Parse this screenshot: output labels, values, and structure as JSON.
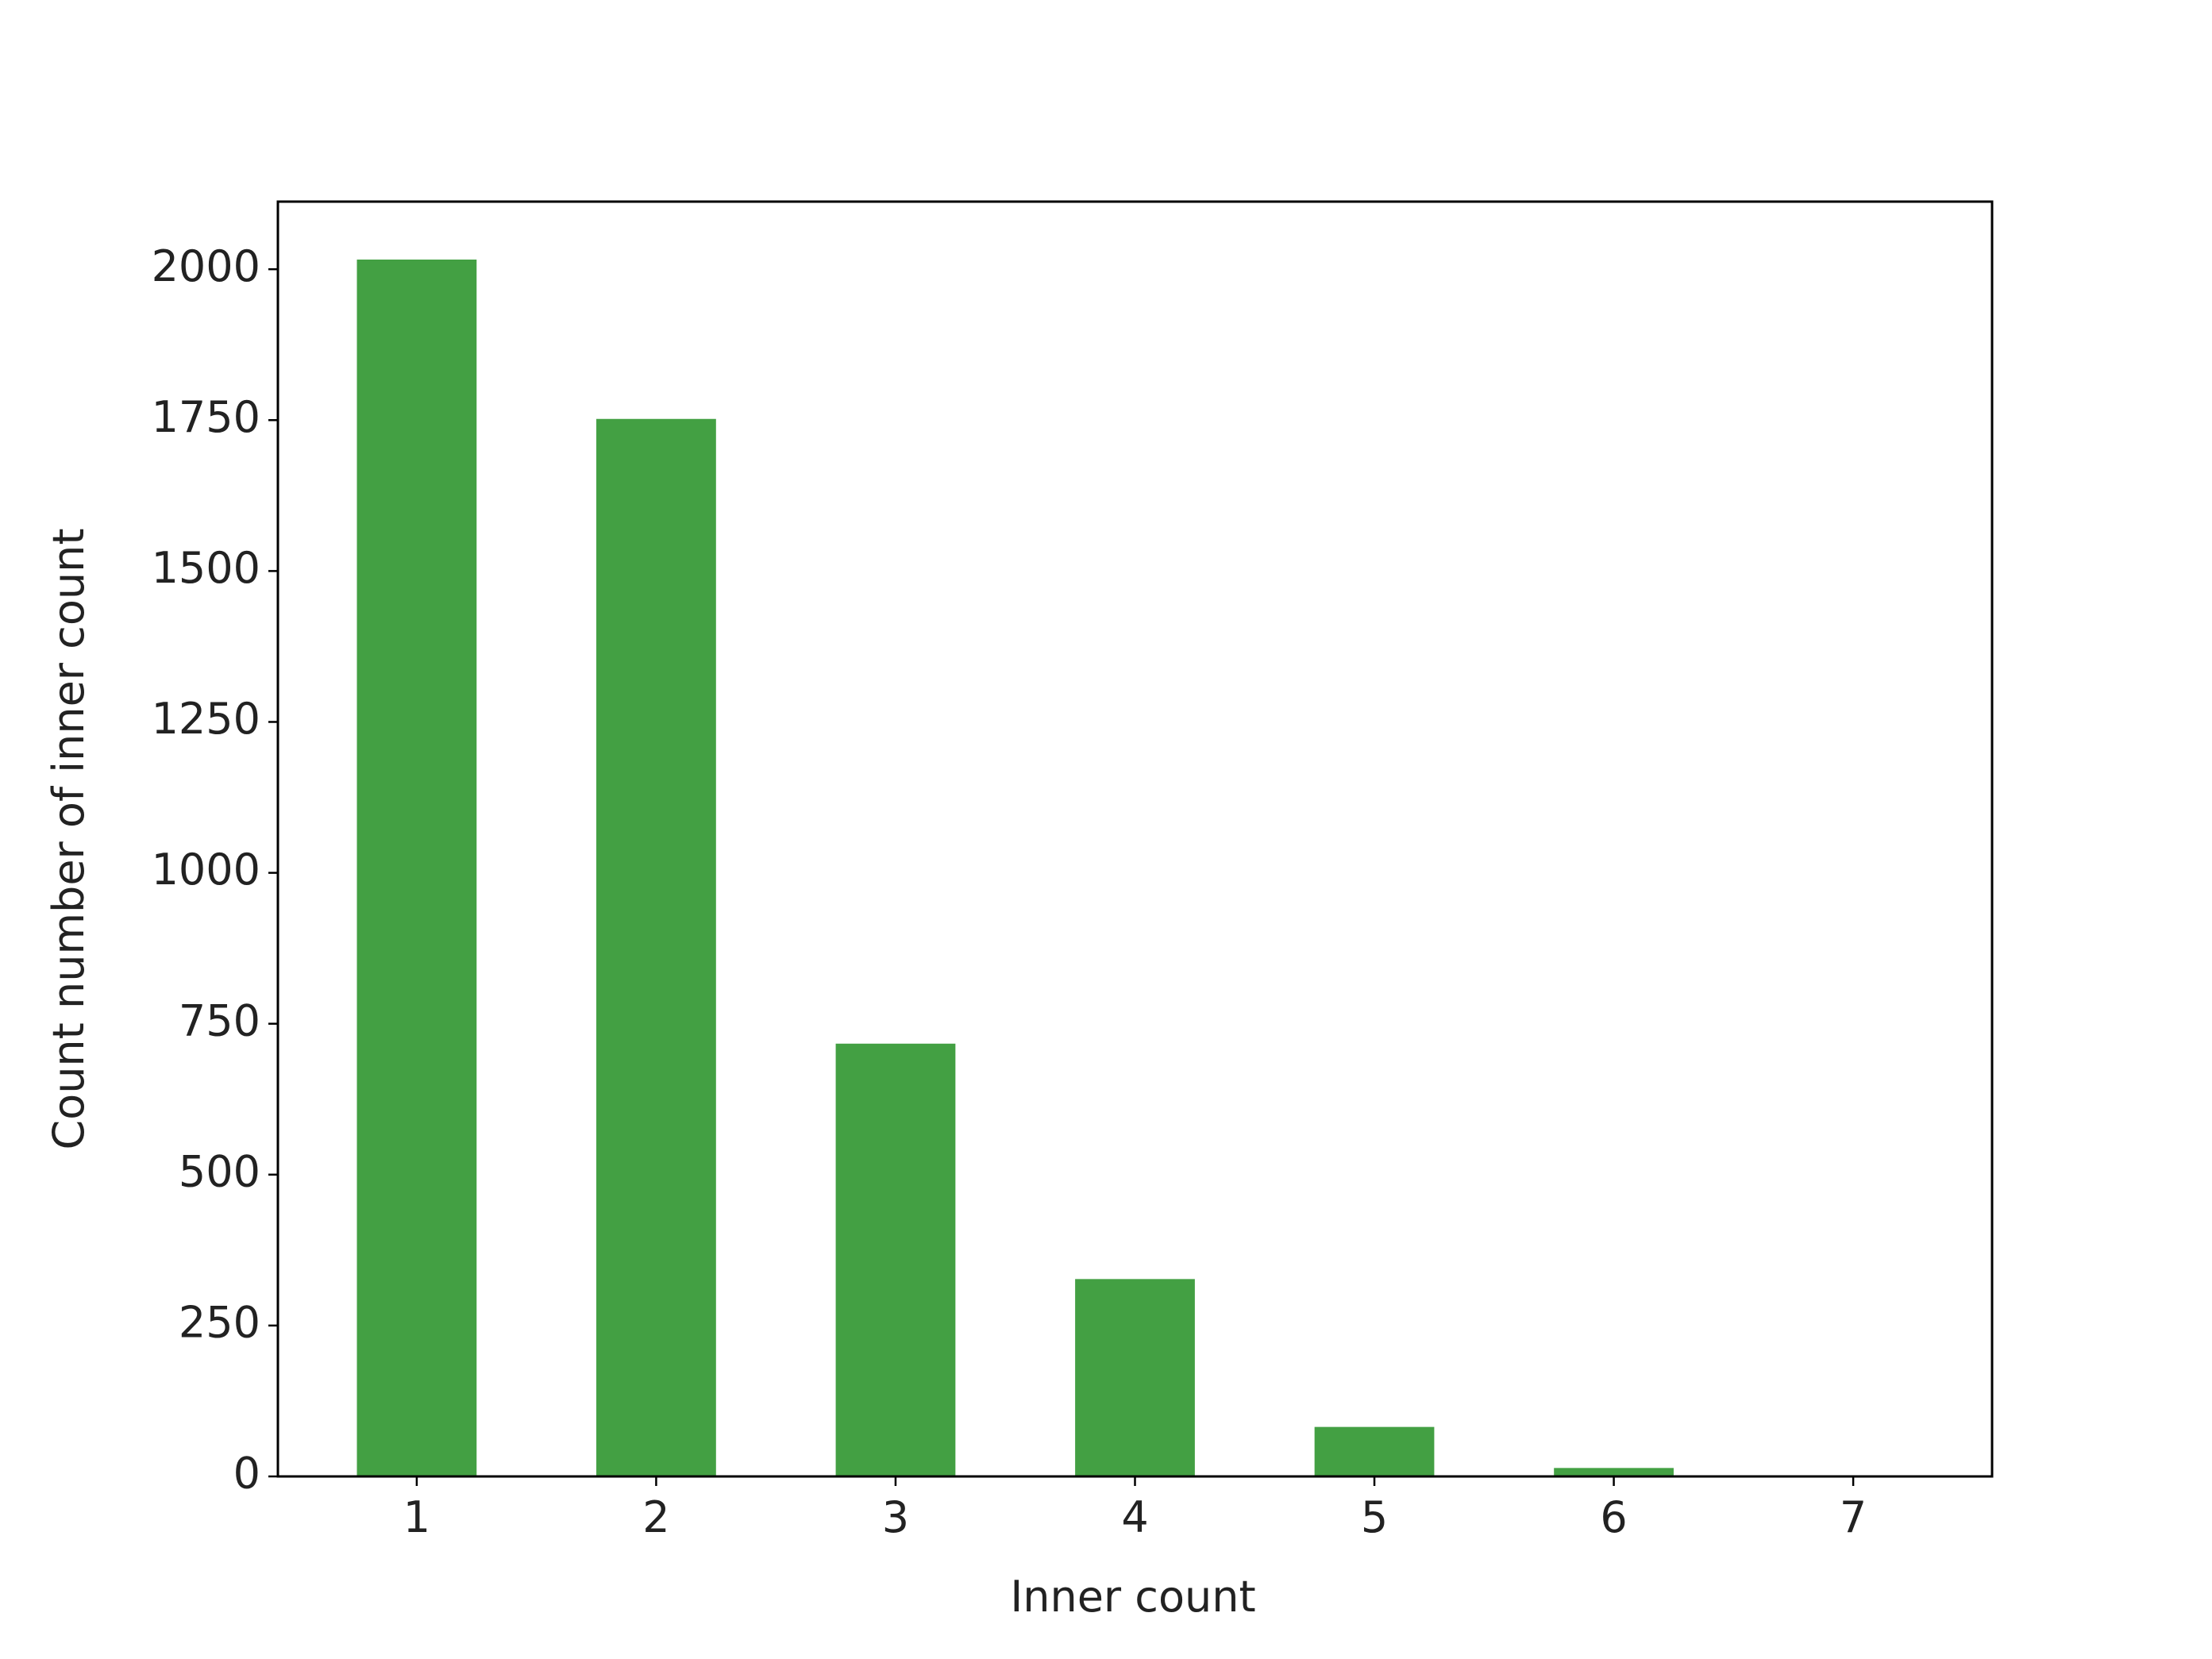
{
  "chart_data": {
    "type": "bar",
    "x_label": "Inner count",
    "y_label": "Count number of inner count",
    "x": [
      1,
      2,
      3,
      4,
      5,
      6,
      7
    ],
    "values": [
      2016,
      1752,
      717,
      327,
      82,
      14,
      1
    ],
    "color": "#43a043",
    "xlim": [
      0.42,
      7.58
    ],
    "xticks": [
      1,
      2,
      3,
      4,
      5,
      6,
      7
    ],
    "ylim": [
      0,
      2112
    ],
    "yticks": [
      0,
      250,
      500,
      750,
      1000,
      1250,
      1500,
      1750,
      2000
    ],
    "grid": false
  }
}
